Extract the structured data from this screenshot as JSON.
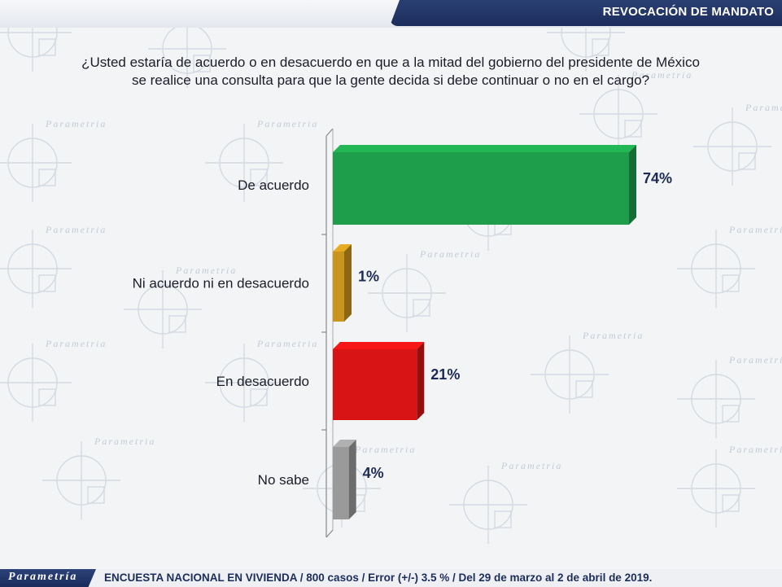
{
  "header": {
    "title": "REVOCACIÓN DE MANDATO"
  },
  "question": {
    "line1": "¿Usted estaría de acuerdo o en desacuerdo en que a la mitad del gobierno del presidente de México",
    "line2": "se realice una consulta para que la gente decida si debe continuar o no en el cargo?"
  },
  "chart_data": {
    "type": "bar",
    "orientation": "horizontal",
    "title": "",
    "xlabel": "",
    "ylabel": "",
    "grid": false,
    "legend": "none",
    "categories": [
      "De acuerdo",
      "Ni acuerdo ni en desacuerdo",
      "En desacuerdo",
      "No sabe"
    ],
    "values": [
      74,
      1,
      21,
      4
    ],
    "value_labels": [
      "74%",
      "1%",
      "21%",
      "4%"
    ],
    "colors": [
      "#1e9e4a",
      "#c8951e",
      "#d81414",
      "#9a9a9a"
    ],
    "xlim": [
      0,
      74
    ]
  },
  "footer": {
    "brand": "Parametría",
    "note": "ENCUESTA NACIONAL EN VIVIENDA / 800 casos / Error (+/-) 3.5 % / Del 29 de marzo al 2 de abril de 2019."
  },
  "watermark": {
    "text": "Parametria"
  }
}
